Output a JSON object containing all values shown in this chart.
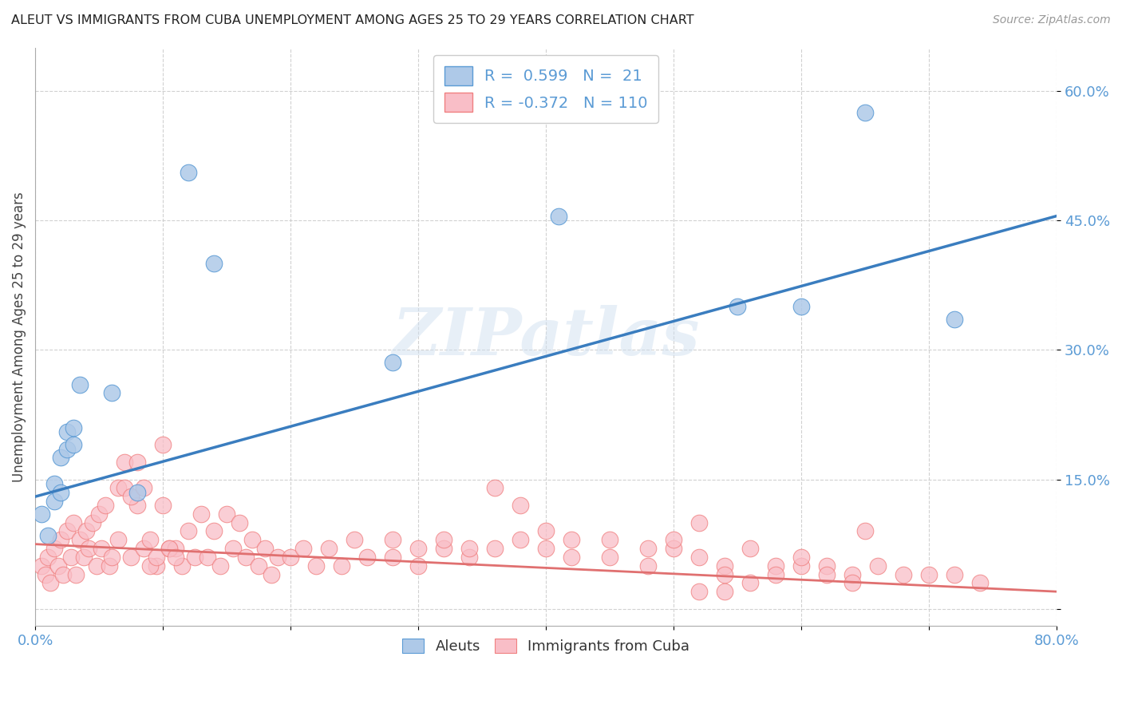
{
  "title": "ALEUT VS IMMIGRANTS FROM CUBA UNEMPLOYMENT AMONG AGES 25 TO 29 YEARS CORRELATION CHART",
  "source": "Source: ZipAtlas.com",
  "ylabel": "Unemployment Among Ages 25 to 29 years",
  "yticks": [
    0.0,
    0.15,
    0.3,
    0.45,
    0.6
  ],
  "ytick_labels": [
    "",
    "15.0%",
    "30.0%",
    "45.0%",
    "60.0%"
  ],
  "xmin": 0.0,
  "xmax": 0.8,
  "ymin": -0.02,
  "ymax": 0.65,
  "aleut_R": 0.599,
  "aleut_N": 21,
  "cuba_R": -0.372,
  "cuba_N": 110,
  "aleut_color": "#aec9e8",
  "cuba_color": "#f9bec7",
  "aleut_edge_color": "#5b9bd5",
  "cuba_edge_color": "#f08080",
  "aleut_line_color": "#3a7dbf",
  "cuba_line_color": "#e07070",
  "watermark": "ZIPatlas",
  "aleut_scatter_x": [
    0.005,
    0.01,
    0.015,
    0.015,
    0.02,
    0.02,
    0.025,
    0.025,
    0.03,
    0.03,
    0.035,
    0.06,
    0.08,
    0.12,
    0.14,
    0.28,
    0.41,
    0.55,
    0.6,
    0.65,
    0.72
  ],
  "aleut_scatter_y": [
    0.11,
    0.085,
    0.125,
    0.145,
    0.135,
    0.175,
    0.185,
    0.205,
    0.19,
    0.21,
    0.26,
    0.25,
    0.135,
    0.505,
    0.4,
    0.285,
    0.455,
    0.35,
    0.35,
    0.575,
    0.335
  ],
  "cuba_scatter_x": [
    0.005,
    0.008,
    0.01,
    0.012,
    0.015,
    0.018,
    0.02,
    0.022,
    0.025,
    0.028,
    0.03,
    0.032,
    0.035,
    0.038,
    0.04,
    0.042,
    0.045,
    0.048,
    0.05,
    0.052,
    0.055,
    0.058,
    0.06,
    0.065,
    0.07,
    0.075,
    0.08,
    0.085,
    0.09,
    0.095,
    0.1,
    0.105,
    0.11,
    0.115,
    0.12,
    0.125,
    0.13,
    0.135,
    0.14,
    0.145,
    0.15,
    0.155,
    0.16,
    0.165,
    0.17,
    0.175,
    0.18,
    0.185,
    0.19,
    0.2,
    0.21,
    0.22,
    0.23,
    0.24,
    0.25,
    0.26,
    0.28,
    0.3,
    0.32,
    0.34,
    0.36,
    0.38,
    0.4,
    0.42,
    0.45,
    0.48,
    0.5,
    0.52,
    0.54,
    0.56,
    0.58,
    0.6,
    0.62,
    0.64,
    0.65,
    0.66,
    0.68,
    0.7,
    0.72,
    0.74,
    0.52,
    0.54,
    0.28,
    0.3,
    0.32,
    0.34,
    0.36,
    0.38,
    0.4,
    0.42,
    0.45,
    0.48,
    0.5,
    0.52,
    0.54,
    0.56,
    0.58,
    0.6,
    0.62,
    0.64,
    0.065,
    0.07,
    0.075,
    0.08,
    0.085,
    0.09,
    0.095,
    0.1,
    0.105,
    0.11
  ],
  "cuba_scatter_y": [
    0.05,
    0.04,
    0.06,
    0.03,
    0.07,
    0.05,
    0.08,
    0.04,
    0.09,
    0.06,
    0.1,
    0.04,
    0.08,
    0.06,
    0.09,
    0.07,
    0.1,
    0.05,
    0.11,
    0.07,
    0.12,
    0.05,
    0.06,
    0.08,
    0.17,
    0.06,
    0.12,
    0.07,
    0.08,
    0.05,
    0.12,
    0.07,
    0.07,
    0.05,
    0.09,
    0.06,
    0.11,
    0.06,
    0.09,
    0.05,
    0.11,
    0.07,
    0.1,
    0.06,
    0.08,
    0.05,
    0.07,
    0.04,
    0.06,
    0.06,
    0.07,
    0.05,
    0.07,
    0.05,
    0.08,
    0.06,
    0.06,
    0.05,
    0.07,
    0.06,
    0.07,
    0.08,
    0.07,
    0.06,
    0.06,
    0.05,
    0.07,
    0.06,
    0.05,
    0.07,
    0.05,
    0.05,
    0.05,
    0.04,
    0.09,
    0.05,
    0.04,
    0.04,
    0.04,
    0.03,
    0.1,
    0.04,
    0.08,
    0.07,
    0.08,
    0.07,
    0.14,
    0.12,
    0.09,
    0.08,
    0.08,
    0.07,
    0.08,
    0.02,
    0.02,
    0.03,
    0.04,
    0.06,
    0.04,
    0.03,
    0.14,
    0.14,
    0.13,
    0.17,
    0.14,
    0.05,
    0.06,
    0.19,
    0.07,
    0.06
  ],
  "aleut_line_x": [
    0.0,
    0.8
  ],
  "aleut_line_y": [
    0.13,
    0.455
  ],
  "cuba_line_x": [
    0.0,
    0.8
  ],
  "cuba_line_y": [
    0.075,
    0.02
  ]
}
